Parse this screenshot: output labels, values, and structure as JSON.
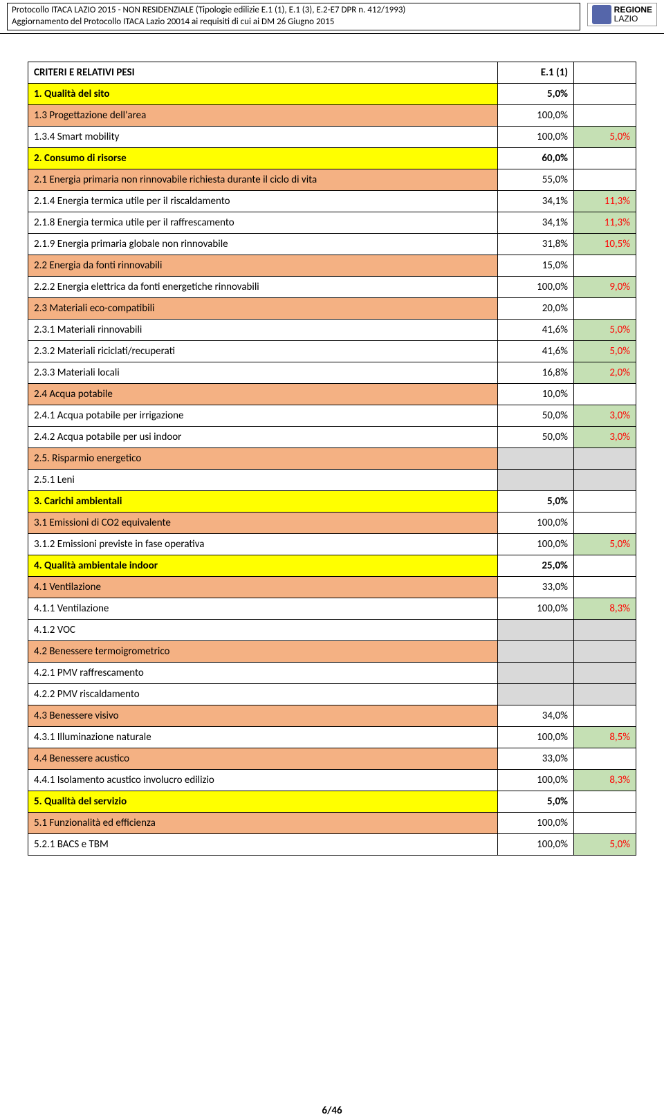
{
  "header": {
    "line1": "Protocollo ITACA LAZIO 2015 - NON RESIDENZIALE (Tipologie edilizie E.1 (1), E.1 (3), E.2-E7 DPR n. 412/1993)",
    "line2": "Aggiornamento del Protocollo ITACA Lazio 20014 ai requisiti di cui ai DM 26 Giugno 2015",
    "logo_top": "REGIONE",
    "logo_bottom": "LAZIO"
  },
  "colors": {
    "yellow": "#ffff00",
    "orange": "#f4b183",
    "green": "#c5e0b4",
    "gray": "#d9d9d9",
    "red": "#ff0000"
  },
  "rows": [
    {
      "label": "CRITERI E RELATIVI PESI",
      "c2": "E.1 (1)",
      "c3": "",
      "bold": true,
      "bg1": "",
      "bg2": "",
      "bg3": ""
    },
    {
      "label": "1. Qualità del sito",
      "c2": "5,0%",
      "c3": "",
      "bold": true,
      "bg1": "yellow",
      "bg2": "",
      "bg3": ""
    },
    {
      "label": "1.3 Progettazione dell'area",
      "c2": "100,0%",
      "c3": "",
      "bold": false,
      "bg1": "orange",
      "bg2": "",
      "bg3": ""
    },
    {
      "label": "1.3.4 Smart mobility",
      "c2": "100,0%",
      "c3": "5,0%",
      "bold": false,
      "bg1": "",
      "bg2": "",
      "bg3": "green",
      "red3": true
    },
    {
      "label": "2. Consumo di risorse",
      "c2": "60,0%",
      "c3": "",
      "bold": true,
      "bg1": "yellow",
      "bg2": "",
      "bg3": ""
    },
    {
      "label": "2.1 Energia primaria non rinnovabile richiesta durante il ciclo di vita",
      "c2": "55,0%",
      "c3": "",
      "bold": false,
      "bg1": "orange",
      "bg2": "",
      "bg3": ""
    },
    {
      "label": "2.1.4 Energia termica utile per il riscaldamento",
      "c2": "34,1%",
      "c3": "11,3%",
      "bold": false,
      "bg1": "",
      "bg2": "",
      "bg3": "green",
      "red3": true
    },
    {
      "label": "2.1.8 Energia termica utile per il raffrescamento",
      "c2": "34,1%",
      "c3": "11,3%",
      "bold": false,
      "bg1": "",
      "bg2": "",
      "bg3": "green",
      "red3": true
    },
    {
      "label": "2.1.9 Energia primaria globale non rinnovabile",
      "c2": "31,8%",
      "c3": "10,5%",
      "bold": false,
      "bg1": "",
      "bg2": "",
      "bg3": "green",
      "red3": true
    },
    {
      "label": "2.2 Energia da fonti rinnovabili",
      "c2": "15,0%",
      "c3": "",
      "bold": false,
      "bg1": "orange",
      "bg2": "",
      "bg3": ""
    },
    {
      "label": "2.2.2 Energia elettrica da fonti energetiche rinnovabili",
      "c2": "100,0%",
      "c3": "9,0%",
      "bold": false,
      "bg1": "",
      "bg2": "",
      "bg3": "green",
      "red3": true
    },
    {
      "label": "2.3 Materiali eco-compatibili",
      "c2": "20,0%",
      "c3": "",
      "bold": false,
      "bg1": "orange",
      "bg2": "",
      "bg3": ""
    },
    {
      "label": "2.3.1 Materiali rinnovabili",
      "c2": "41,6%",
      "c3": "5,0%",
      "bold": false,
      "bg1": "",
      "bg2": "",
      "bg3": "green",
      "red3": true
    },
    {
      "label": "2.3.2 Materiali riciclati/recuperati",
      "c2": "41,6%",
      "c3": "5,0%",
      "bold": false,
      "bg1": "",
      "bg2": "",
      "bg3": "green",
      "red3": true
    },
    {
      "label": "2.3.3 Materiali locali",
      "c2": "16,8%",
      "c3": "2,0%",
      "bold": false,
      "bg1": "",
      "bg2": "",
      "bg3": "green",
      "red3": true
    },
    {
      "label": "2.4 Acqua potabile",
      "c2": "10,0%",
      "c3": "",
      "bold": false,
      "bg1": "orange",
      "bg2": "",
      "bg3": ""
    },
    {
      "label": "2.4.1 Acqua potabile per irrigazione",
      "c2": "50,0%",
      "c3": "3,0%",
      "bold": false,
      "bg1": "",
      "bg2": "",
      "bg3": "green",
      "red3": true
    },
    {
      "label": "2.4.2 Acqua potabile per usi indoor",
      "c2": "50,0%",
      "c3": "3,0%",
      "bold": false,
      "bg1": "",
      "bg2": "",
      "bg3": "green",
      "red3": true
    },
    {
      "label": "2.5. Risparmio energetico",
      "c2": "",
      "c3": "",
      "bold": false,
      "bg1": "orange",
      "bg2": "gray",
      "bg3": "gray"
    },
    {
      "label": "2.5.1 Leni",
      "c2": "",
      "c3": "",
      "bold": false,
      "bg1": "",
      "bg2": "gray",
      "bg3": "gray"
    },
    {
      "label": "3. Carichi ambientali",
      "c2": "5,0%",
      "c3": "",
      "bold": true,
      "bg1": "yellow",
      "bg2": "",
      "bg3": ""
    },
    {
      "label": "3.1 Emissioni di CO2 equivalente",
      "c2": "100,0%",
      "c3": "",
      "bold": false,
      "bg1": "orange",
      "bg2": "",
      "bg3": ""
    },
    {
      "label": "3.1.2 Emissioni previste in fase operativa",
      "c2": "100,0%",
      "c3": "5,0%",
      "bold": false,
      "bg1": "",
      "bg2": "",
      "bg3": "green",
      "red3": true
    },
    {
      "label": "4. Qualità ambientale indoor",
      "c2": "25,0%",
      "c3": "",
      "bold": true,
      "bg1": "yellow",
      "bg2": "",
      "bg3": ""
    },
    {
      "label": "4.1 Ventilazione",
      "c2": "33,0%",
      "c3": "",
      "bold": false,
      "bg1": "orange",
      "bg2": "",
      "bg3": ""
    },
    {
      "label": "4.1.1 Ventilazione",
      "c2": "100,0%",
      "c3": "8,3%",
      "bold": false,
      "bg1": "",
      "bg2": "",
      "bg3": "green",
      "red3": true
    },
    {
      "label": "4.1.2 VOC",
      "c2": "",
      "c3": "",
      "bold": false,
      "bg1": "",
      "bg2": "gray",
      "bg3": "gray"
    },
    {
      "label": "4.2 Benessere termoigrometrico",
      "c2": "",
      "c3": "",
      "bold": false,
      "bg1": "orange",
      "bg2": "gray",
      "bg3": "gray"
    },
    {
      "label": "4.2.1 PMV raffrescamento",
      "c2": "",
      "c3": "",
      "bold": false,
      "bg1": "",
      "bg2": "gray",
      "bg3": "gray"
    },
    {
      "label": "4.2.2 PMV riscaldamento",
      "c2": "",
      "c3": "",
      "bold": false,
      "bg1": "",
      "bg2": "gray",
      "bg3": "gray"
    },
    {
      "label": "4.3 Benessere visivo",
      "c2": "34,0%",
      "c3": "",
      "bold": false,
      "bg1": "orange",
      "bg2": "",
      "bg3": ""
    },
    {
      "label": "4.3.1 Illuminazione naturale",
      "c2": "100,0%",
      "c3": "8,5%",
      "bold": false,
      "bg1": "",
      "bg2": "",
      "bg3": "green",
      "red3": true
    },
    {
      "label": "4.4 Benessere acustico",
      "c2": "33,0%",
      "c3": "",
      "bold": false,
      "bg1": "orange",
      "bg2": "",
      "bg3": ""
    },
    {
      "label": "4.4.1 Isolamento acustico involucro edilizio",
      "c2": "100,0%",
      "c3": "8,3%",
      "bold": false,
      "bg1": "",
      "bg2": "",
      "bg3": "green",
      "red3": true
    },
    {
      "label": "5. Qualità del servizio",
      "c2": "5,0%",
      "c3": "",
      "bold": true,
      "bg1": "yellow",
      "bg2": "",
      "bg3": ""
    },
    {
      "label": "5.1 Funzionalità ed efficienza",
      "c2": "100,0%",
      "c3": "",
      "bold": false,
      "bg1": "orange",
      "bg2": "",
      "bg3": ""
    },
    {
      "label": "5.2.1 BACS e TBM",
      "c2": "100,0%",
      "c3": "5,0%",
      "bold": false,
      "bg1": "",
      "bg2": "",
      "bg3": "green",
      "red3": true
    }
  ],
  "footer": "6/46"
}
